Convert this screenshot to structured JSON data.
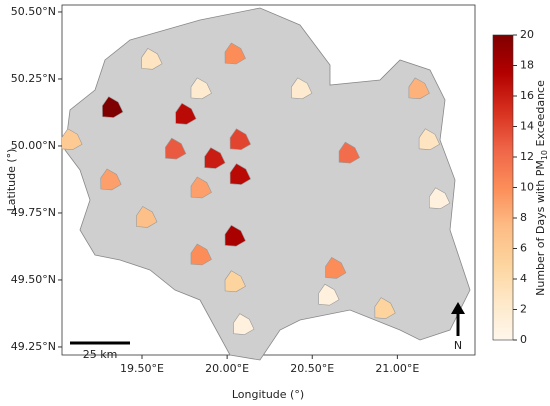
{
  "chart_data": {
    "type": "map",
    "xlabel": "Longitude (°)",
    "ylabel": "Latitude (°)",
    "xlim": [
      19.03,
      21.456
    ],
    "ylim": [
      49.22,
      50.526
    ],
    "xticks": [
      {
        "value": 19.5,
        "label": "19.50°E"
      },
      {
        "value": 20.0,
        "label": "20.00°E"
      },
      {
        "value": 20.5,
        "label": "20.50°E"
      },
      {
        "value": 21.0,
        "label": "21.00°E"
      }
    ],
    "yticks": [
      {
        "value": 49.25,
        "label": "49.25°N"
      },
      {
        "value": 49.5,
        "label": "49.50°N"
      },
      {
        "value": 49.75,
        "label": "49.75°N"
      },
      {
        "value": 50.0,
        "label": "50.00°N"
      },
      {
        "value": 50.25,
        "label": "50.25°N"
      },
      {
        "value": 50.5,
        "label": "50.50°N"
      }
    ],
    "colorbar": {
      "label_before": "Number of Days with PM",
      "label_sub": "10",
      "label_after": " Exceedance",
      "lim": [
        0,
        20
      ],
      "ticks": [
        0,
        2,
        4,
        6,
        8,
        10,
        12,
        14,
        16,
        18,
        20
      ],
      "colors": [
        "#fff7ec",
        "#fee8c8",
        "#fdd49e",
        "#fdbb84",
        "#fc8d59",
        "#ef6548",
        "#d7301f",
        "#b30000",
        "#7f0000"
      ]
    },
    "points": [
      {
        "lon": 19.32,
        "lat": 50.14,
        "value": 20
      },
      {
        "lon": 19.75,
        "lat": 50.115,
        "value": 17
      },
      {
        "lon": 20.07,
        "lat": 50.02,
        "value": 14
      },
      {
        "lon": 19.92,
        "lat": 49.95,
        "value": 16
      },
      {
        "lon": 20.07,
        "lat": 49.89,
        "value": 17
      },
      {
        "lon": 19.69,
        "lat": 49.985,
        "value": 13
      },
      {
        "lon": 20.71,
        "lat": 49.97,
        "value": 12
      },
      {
        "lon": 20.04,
        "lat": 50.34,
        "value": 10
      },
      {
        "lon": 21.12,
        "lat": 50.21,
        "value": 8
      },
      {
        "lon": 19.08,
        "lat": 50.02,
        "value": 6
      },
      {
        "lon": 19.31,
        "lat": 49.87,
        "value": 9
      },
      {
        "lon": 19.84,
        "lat": 49.84,
        "value": 9
      },
      {
        "lon": 19.52,
        "lat": 49.73,
        "value": 7
      },
      {
        "lon": 19.84,
        "lat": 49.59,
        "value": 10
      },
      {
        "lon": 20.04,
        "lat": 49.66,
        "value": 18
      },
      {
        "lon": 20.63,
        "lat": 49.54,
        "value": 10
      },
      {
        "lon": 20.92,
        "lat": 49.39,
        "value": 5
      },
      {
        "lon": 20.59,
        "lat": 49.44,
        "value": 1
      },
      {
        "lon": 20.04,
        "lat": 49.49,
        "value": 5
      },
      {
        "lon": 19.55,
        "lat": 50.32,
        "value": 3
      },
      {
        "lon": 19.84,
        "lat": 50.21,
        "value": 2
      },
      {
        "lon": 20.43,
        "lat": 50.21,
        "value": 2
      },
      {
        "lon": 21.18,
        "lat": 50.02,
        "value": 3
      },
      {
        "lon": 21.24,
        "lat": 49.8,
        "value": 1
      },
      {
        "lon": 20.09,
        "lat": 49.33,
        "value": 1
      }
    ],
    "scale_bar_label": "25 km",
    "north_label": "N"
  }
}
